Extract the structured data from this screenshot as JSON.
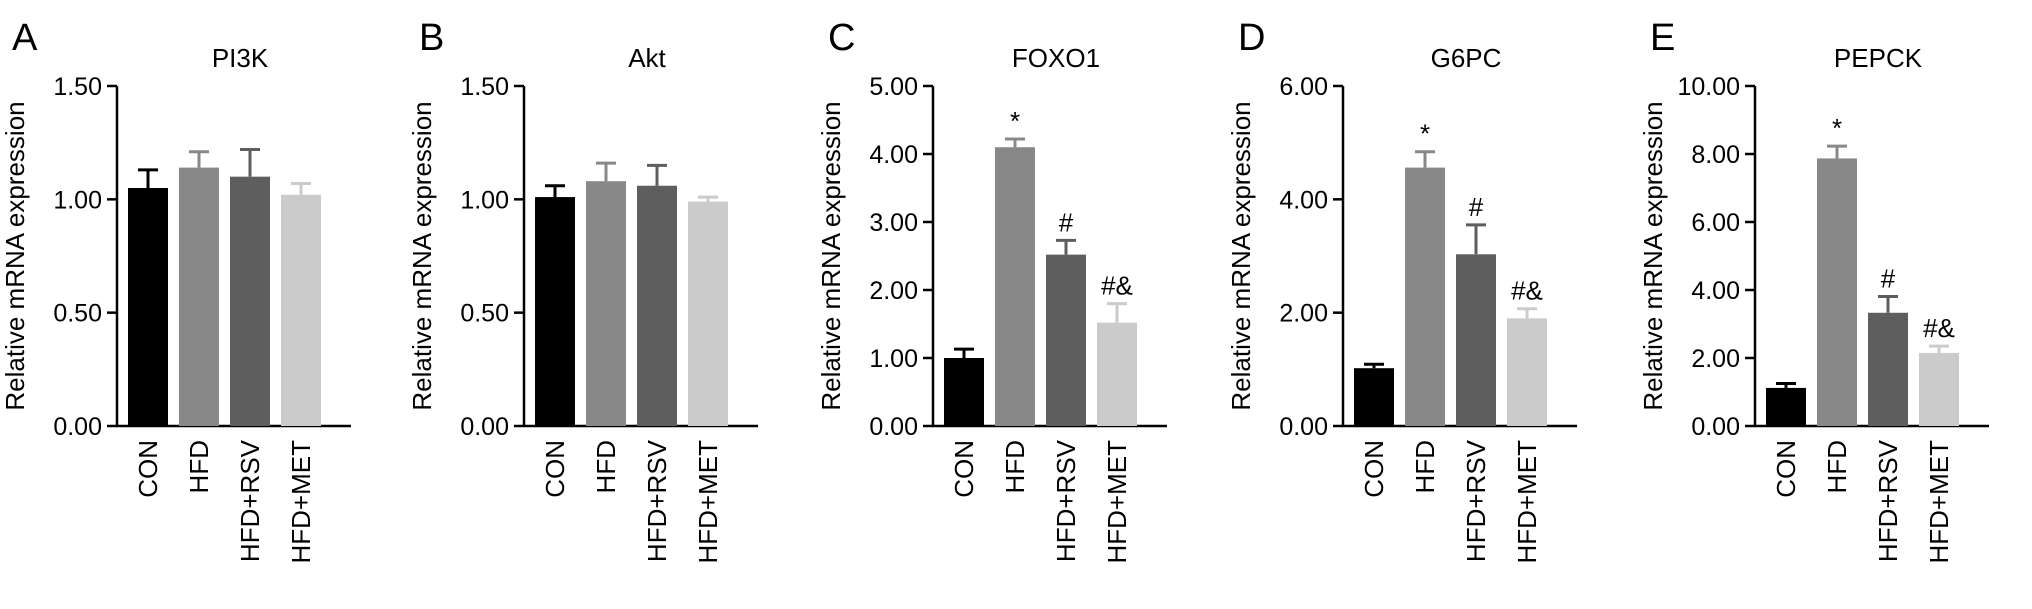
{
  "chart_data": [
    {
      "type": "bar",
      "panel_label": "A",
      "title": "PI3K",
      "ylabel": "Relative mRNA expression",
      "xlabel": "",
      "categories": [
        "CON",
        "HFD",
        "HFD+RSV",
        "HFD+MET"
      ],
      "values": [
        1.05,
        1.14,
        1.1,
        1.02
      ],
      "errors": [
        0.08,
        0.07,
        0.12,
        0.05
      ],
      "annotations": [
        "",
        "",
        "",
        ""
      ],
      "ylim": [
        0,
        1.5
      ],
      "yticks": [
        "0.00",
        "0.50",
        "1.00",
        "1.50"
      ],
      "grid": false,
      "colors": [
        "#000000",
        "#888888",
        "#5e5e5e",
        "#cbcbcb"
      ]
    },
    {
      "type": "bar",
      "panel_label": "B",
      "title": "Akt",
      "ylabel": "Relative mRNA expression",
      "xlabel": "",
      "categories": [
        "CON",
        "HFD",
        "HFD+RSV",
        "HFD+MET"
      ],
      "values": [
        1.01,
        1.08,
        1.06,
        0.99
      ],
      "errors": [
        0.05,
        0.08,
        0.09,
        0.02
      ],
      "annotations": [
        "",
        "",
        "",
        ""
      ],
      "ylim": [
        0,
        1.5
      ],
      "yticks": [
        "0.00",
        "0.50",
        "1.00",
        "1.50"
      ],
      "grid": false,
      "colors": [
        "#000000",
        "#888888",
        "#5e5e5e",
        "#cbcbcb"
      ]
    },
    {
      "type": "bar",
      "panel_label": "C",
      "title": "FOXO1",
      "ylabel": "Relative mRNA expression",
      "xlabel": "",
      "categories": [
        "CON",
        "HFD",
        "HFD+RSV",
        "HFD+MET"
      ],
      "values": [
        1.0,
        4.1,
        2.52,
        1.52
      ],
      "errors": [
        0.13,
        0.12,
        0.21,
        0.28
      ],
      "annotations": [
        "",
        "*",
        "#",
        "#&"
      ],
      "ylim": [
        0,
        5
      ],
      "yticks": [
        "0.00",
        "1.00",
        "2.00",
        "3.00",
        "4.00",
        "5.00"
      ],
      "grid": false,
      "colors": [
        "#000000",
        "#888888",
        "#5e5e5e",
        "#cbcbcb"
      ]
    },
    {
      "type": "bar",
      "panel_label": "D",
      "title": "G6PC",
      "ylabel": "Relative mRNA expression",
      "xlabel": "",
      "categories": [
        "CON",
        "HFD",
        "HFD+RSV",
        "HFD+MET"
      ],
      "values": [
        1.02,
        4.56,
        3.03,
        1.9
      ],
      "errors": [
        0.07,
        0.28,
        0.52,
        0.17
      ],
      "annotations": [
        "",
        "*",
        "#",
        "#&"
      ],
      "ylim": [
        0,
        6
      ],
      "yticks": [
        "0.00",
        "2.00",
        "4.00",
        "6.00"
      ],
      "grid": false,
      "colors": [
        "#000000",
        "#888888",
        "#5e5e5e",
        "#cbcbcb"
      ]
    },
    {
      "type": "bar",
      "panel_label": "E",
      "title": "PEPCK",
      "ylabel": "Relative mRNA expression",
      "xlabel": "",
      "categories": [
        "CON",
        "HFD",
        "HFD+RSV",
        "HFD+MET"
      ],
      "values": [
        1.12,
        7.87,
        3.33,
        2.15
      ],
      "errors": [
        0.13,
        0.36,
        0.48,
        0.2
      ],
      "annotations": [
        "",
        "*",
        "#",
        "#&"
      ],
      "ylim": [
        0,
        10
      ],
      "yticks": [
        "0.00",
        "2.00",
        "4.00",
        "6.00",
        "8.00",
        "10.00"
      ],
      "grid": false,
      "colors": [
        "#000000",
        "#888888",
        "#5e5e5e",
        "#cbcbcb"
      ]
    }
  ]
}
